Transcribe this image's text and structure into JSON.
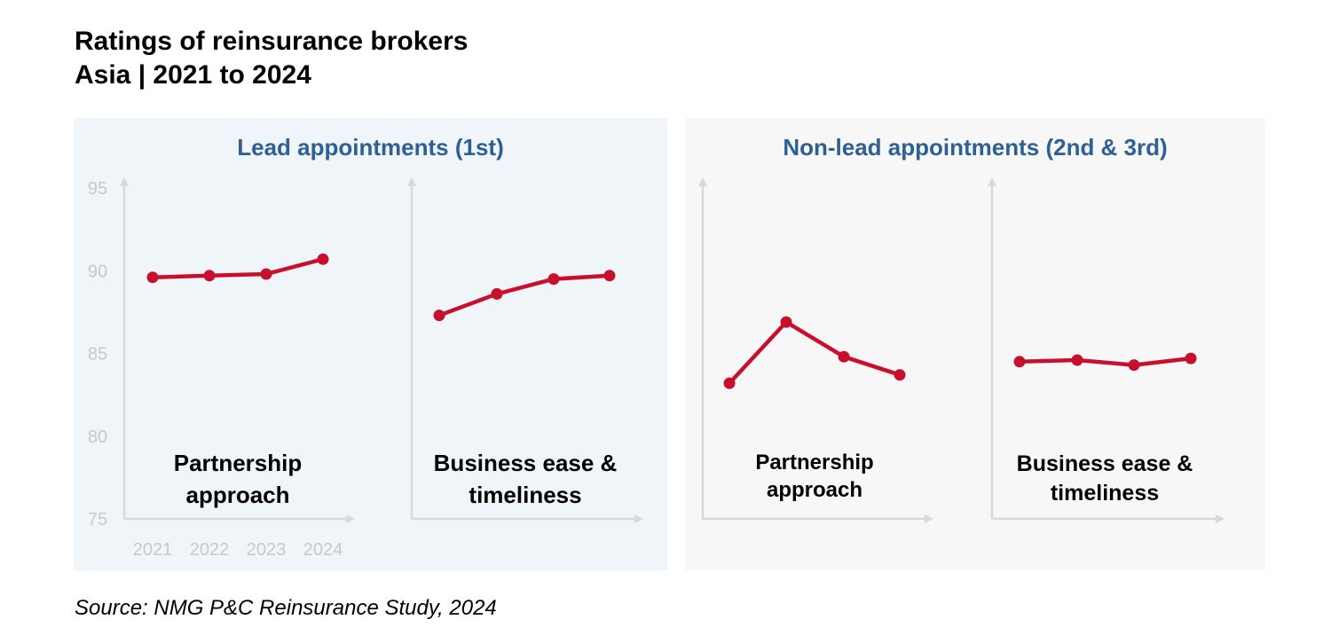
{
  "title_line1": "Ratings of reinsurance brokers",
  "title_line2": "Asia | 2021 to 2024",
  "source": "Source: NMG P&C Reinsurance Study, 2024",
  "colors": {
    "line": "#c8102e",
    "axis": "#d9d9d9",
    "tick_label": "#c8c8c8",
    "panel_title": "#2e5f95",
    "panel_lead_bg": "#f0f5fa",
    "panel_nonlead_bg": "#f7f7f7"
  },
  "panels": [
    {
      "title": "Lead appointments (1st)"
    },
    {
      "title": "Non-lead appointments (2nd & 3rd)"
    }
  ],
  "chart_data": [
    {
      "type": "line",
      "group": "Lead appointments (1st)",
      "label_line1": "Partnership",
      "label_line2": "approach",
      "x": [
        "2021",
        "2022",
        "2023",
        "2024"
      ],
      "values": [
        89.6,
        89.7,
        89.8,
        90.7
      ],
      "ylim": [
        75,
        95
      ],
      "yticks": [
        "95",
        "90",
        "85",
        "80",
        "75"
      ],
      "grid": false
    },
    {
      "type": "line",
      "group": "Lead appointments (1st)",
      "label_line1": "Business ease &",
      "label_line2": "timeliness",
      "x": [
        "2021",
        "2022",
        "2023",
        "2024"
      ],
      "values": [
        87.3,
        88.6,
        89.5,
        89.7
      ],
      "ylim": [
        75,
        95
      ],
      "grid": false
    },
    {
      "type": "line",
      "group": "Non-lead appointments (2nd & 3rd)",
      "label_line1": "Partnership",
      "label_line2": "approach",
      "x": [
        "2021",
        "2022",
        "2023",
        "2024"
      ],
      "values": [
        83.2,
        86.9,
        84.8,
        83.7
      ],
      "ylim": [
        75,
        95
      ],
      "grid": false
    },
    {
      "type": "line",
      "group": "Non-lead appointments (2nd & 3rd)",
      "label_line1": "Business ease &",
      "label_line2": "timeliness",
      "x": [
        "2021",
        "2022",
        "2023",
        "2024"
      ],
      "values": [
        84.5,
        84.6,
        84.3,
        84.7
      ],
      "ylim": [
        75,
        95
      ],
      "grid": false
    }
  ]
}
